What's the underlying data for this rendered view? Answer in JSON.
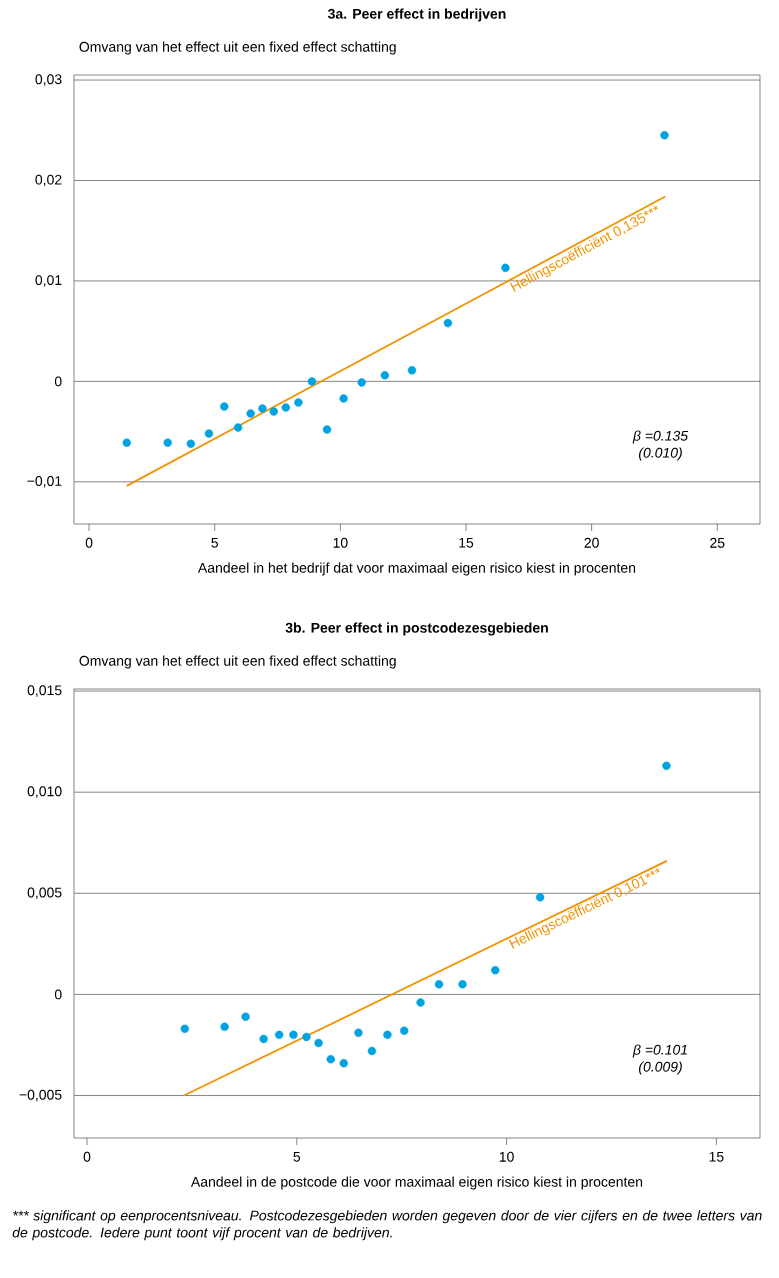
{
  "chart_data": [
    {
      "type": "scatter",
      "title": "3a. Peer effect in bedrijven",
      "ylabel": "Omvang van het effect uit een fixed effect schatting",
      "xlabel": "Aandeel in het bedrijf dat voor maximaal eigen risico kiest in procenten",
      "xlim": [
        -0.6,
        26.7
      ],
      "ylim": [
        -0.0142,
        0.0305
      ],
      "xticks": [
        0,
        5,
        10,
        15,
        20,
        25
      ],
      "yticks": [
        {
          "value": -0.01,
          "label": "−0,01"
        },
        0,
        {
          "value": 0.01,
          "label": "0,01"
        },
        {
          "value": 0.02,
          "label": "0,02"
        },
        {
          "value": 0.03,
          "label": "0,03"
        }
      ],
      "grid": "y",
      "series": [
        {
          "marker": "circle",
          "color": "#00a3e0",
          "x": [
            1.5,
            3.13,
            4.05,
            4.77,
            5.38,
            5.93,
            6.43,
            6.9,
            7.35,
            7.83,
            8.33,
            8.87,
            9.47,
            10.13,
            10.85,
            11.77,
            12.85,
            14.28,
            16.57,
            22.9
          ],
          "values": [
            -0.0061,
            -0.0061,
            -0.0062,
            -0.0052,
            -0.0025,
            -0.0046,
            -0.0032,
            -0.0027,
            -0.003,
            -0.0026,
            -0.0021,
            0.0,
            -0.0048,
            -0.0017,
            -0.0001,
            0.0006,
            0.0011,
            0.0058,
            0.0113,
            0.0245
          ]
        },
        {
          "type": "line",
          "marker": "none",
          "color": "#f39200",
          "x": [
            1.5,
            22.93
          ],
          "values": [
            -0.0104,
            0.0184
          ]
        }
      ],
      "annotations": [
        {
          "text": "Hellingscoëfficiënt 0,135***",
          "x": 19.6,
          "y": 0.0139
        },
        "β =0.135",
        "(0.010)"
      ]
    },
    {
      "type": "scatter",
      "title": "3b. Peer effect in postcodezesgebieden",
      "ylabel": "Omvang van het effect uit een fixed effect schatting",
      "xlabel": "Aandeel in de postcode die voor maximaal eigen risico kiest in procenten",
      "xlim": [
        -0.31,
        16.04
      ],
      "ylim": [
        -0.0071,
        0.0151
      ],
      "xticks": [
        0,
        5,
        10,
        15
      ],
      "yticks": [
        {
          "value": -0.005,
          "label": "−0,005"
        },
        0,
        {
          "value": 0.005,
          "label": "0,005"
        },
        {
          "value": 0.01,
          "label": "0,010"
        },
        {
          "value": 0.015,
          "label": "0,015"
        }
      ],
      "grid": "y",
      "series": [
        {
          "marker": "circle",
          "color": "#00a3e0",
          "x": [
            2.33,
            3.28,
            3.78,
            4.21,
            4.58,
            4.92,
            5.23,
            5.52,
            5.81,
            6.12,
            6.47,
            6.79,
            7.16,
            7.56,
            7.95,
            8.39,
            8.95,
            9.73,
            10.8,
            13.81
          ],
          "values": [
            -0.0017,
            -0.0016,
            -0.0011,
            -0.0022,
            -0.002,
            -0.002,
            -0.0021,
            -0.0024,
            -0.0032,
            -0.0034,
            -0.0019,
            -0.0028,
            -0.002,
            -0.0018,
            -0.0004,
            0.0005,
            0.0005,
            0.0012,
            0.0048,
            0.0113
          ]
        },
        {
          "type": "line",
          "marker": "none",
          "color": "#f39200",
          "x": [
            2.31,
            13.82
          ],
          "values": [
            -0.005,
            0.0066
          ]
        }
      ],
      "annotations": [
        {
          "text": "Hellingscoëfficiënt 0,101***",
          "x": 11.8,
          "y": 0.0046
        },
        "β =0.101",
        "(0.009)",
        "*** significant op eenprocentsniveau. Postcodezesgebieden worden gegeven door de vier cijfers en de twee letters van de postcode. Iedere punt toont vijf procent van de bedrijven."
      ]
    }
  ]
}
